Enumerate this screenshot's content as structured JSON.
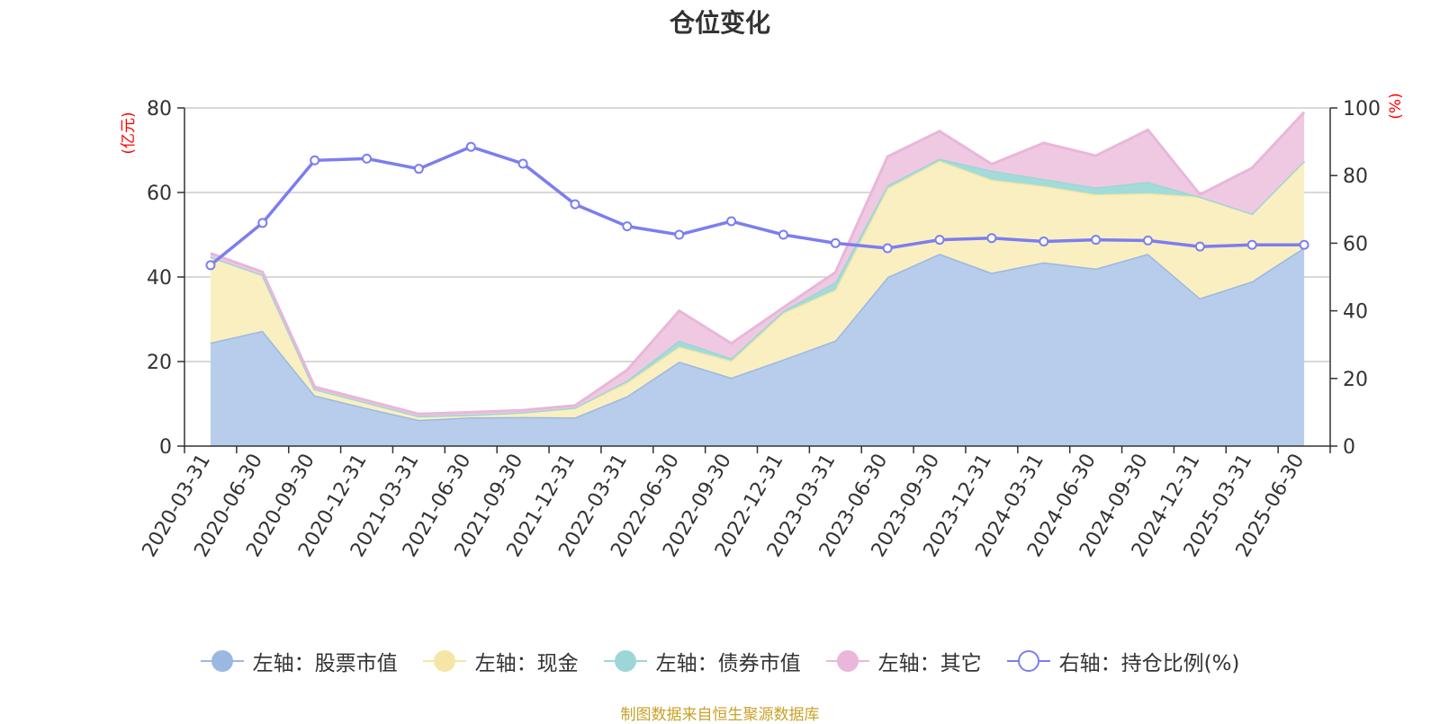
{
  "chart_data": {
    "type": "area",
    "title": "仓位变化",
    "ylabel_left": "(亿元)",
    "ylabel_right": "(%)",
    "ylim_left": [
      0,
      80
    ],
    "ylim_right": [
      0,
      100
    ],
    "yticks_left": [
      "0",
      "20",
      "40",
      "60",
      "80"
    ],
    "yticks_right": [
      "0",
      "20",
      "40",
      "60",
      "80",
      "100"
    ],
    "grid": true,
    "legend_position": "bottom",
    "categories": [
      "2020-03-31",
      "2020-06-30",
      "2020-09-30",
      "2020-12-31",
      "2021-03-31",
      "2021-06-30",
      "2021-09-30",
      "2021-12-31",
      "2022-03-31",
      "2022-06-30",
      "2022-09-30",
      "2022-12-31",
      "2023-03-31",
      "2023-06-30",
      "2023-09-30",
      "2023-12-31",
      "2024-03-31",
      "2024-06-30",
      "2024-09-30",
      "2024-12-31",
      "2025-03-31",
      "2025-06-30"
    ],
    "stack_series": [
      {
        "name": "左轴：股票市值",
        "color": "#9bb8e3",
        "fill": "#b7cdeb",
        "values": [
          24.5,
          27.3,
          12.0,
          9.0,
          6.2,
          6.8,
          6.9,
          6.8,
          11.8,
          20.0,
          16.2,
          20.5,
          25.0,
          40.0,
          45.5,
          41.0,
          43.5,
          42.0,
          45.5,
          35.0,
          39.0,
          47.0
        ]
      },
      {
        "name": "左轴：现金",
        "color": "#f5e6a6",
        "fill": "#faefc0",
        "values": [
          20.3,
          13.2,
          1.5,
          1.3,
          0.9,
          0.6,
          1.1,
          2.3,
          3.2,
          3.5,
          4.0,
          11.0,
          12.0,
          21.0,
          22.0,
          22.0,
          18.0,
          17.5,
          14.3,
          24.0,
          16.0,
          20.5
        ]
      },
      {
        "name": "左轴：债券市值",
        "color": "#9dd6d6",
        "fill": "#a3dbd8",
        "values": [
          0,
          0,
          0,
          0,
          0,
          0,
          0,
          0,
          0.5,
          1.5,
          0.6,
          0.5,
          1.8,
          0.7,
          0.5,
          2.2,
          1.7,
          1.7,
          2.7,
          0,
          0,
          0
        ]
      },
      {
        "name": "左轴：其它",
        "color": "#e8b7d9",
        "fill": "#efc9e2",
        "values": [
          0.8,
          0.7,
          0.5,
          0.5,
          0.5,
          0.6,
          0.5,
          0.5,
          2.5,
          7.0,
          3.5,
          0.8,
          2.3,
          6.8,
          6.5,
          1.5,
          8.5,
          7.5,
          12.3,
          0.5,
          10.8,
          11.5
        ]
      }
    ],
    "line_series": {
      "name": "右轴：持仓比例(%)",
      "color": "#7b7ef0",
      "values": [
        53.5,
        66.0,
        84.5,
        85.0,
        82.0,
        88.5,
        83.5,
        71.5,
        65.0,
        62.5,
        66.5,
        62.5,
        60.0,
        58.5,
        61.0,
        61.5,
        60.5,
        61.0,
        60.8,
        59.0,
        59.5,
        59.5
      ]
    }
  },
  "source_note": "制图数据来自恒生聚源数据库"
}
